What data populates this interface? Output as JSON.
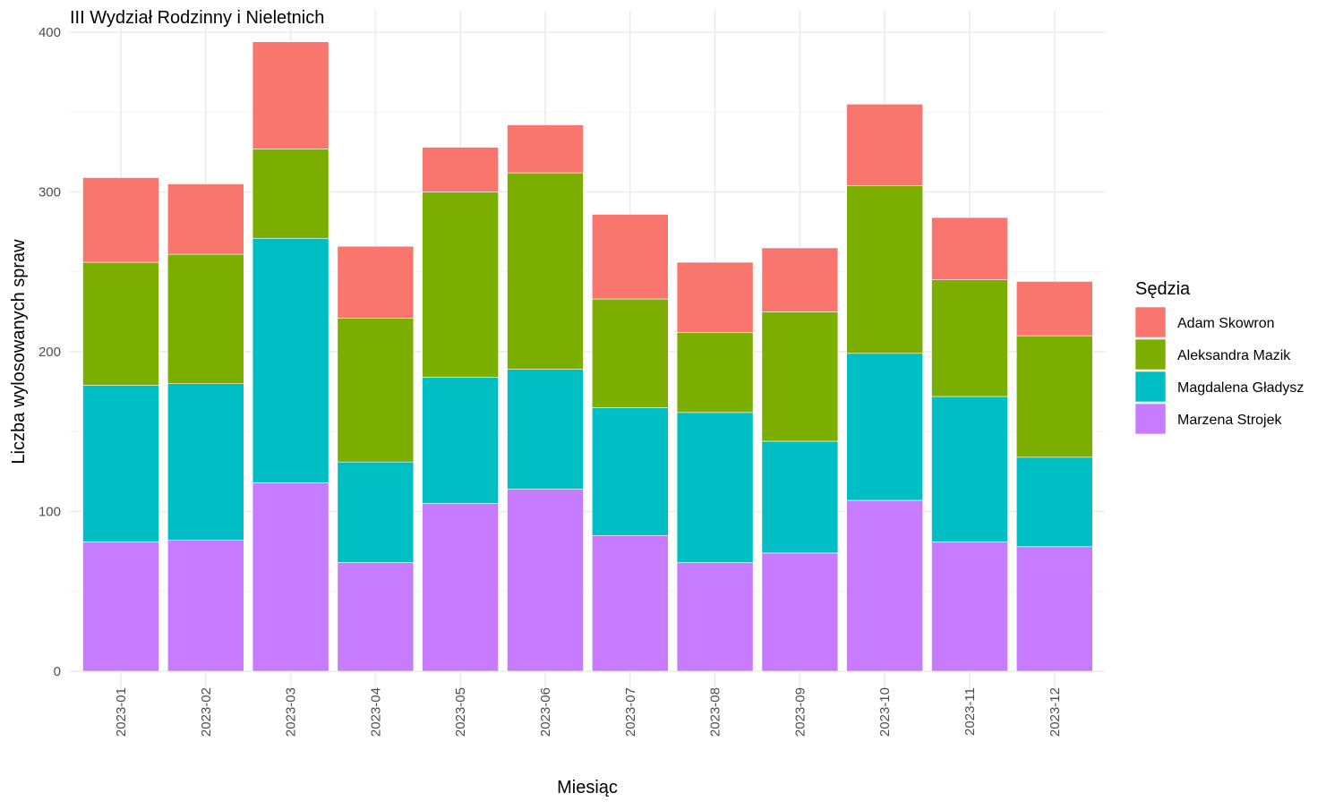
{
  "chart_data": {
    "type": "bar",
    "stacked": true,
    "title": "III Wydział Rodzinny i Nieletnich",
    "xlabel": "Miesiąc",
    "ylabel": "Liczba wylosowanych spraw",
    "ylim": [
      0,
      400
    ],
    "yticks": [
      0,
      100,
      200,
      300,
      400
    ],
    "grid": true,
    "legend_position": "right",
    "legend_title": "Sędzia",
    "categories": [
      "2023-01",
      "2023-02",
      "2023-03",
      "2023-04",
      "2023-05",
      "2023-06",
      "2023-07",
      "2023-08",
      "2023-09",
      "2023-10",
      "2023-11",
      "2023-12"
    ],
    "series": [
      {
        "name": "Marzena Strojek",
        "color": "#C77CFF",
        "values": [
          81,
          82,
          118,
          68,
          105,
          114,
          85,
          68,
          74,
          107,
          81,
          78
        ]
      },
      {
        "name": "Magdalena Gładysz",
        "color": "#00BFC4",
        "values": [
          98,
          98,
          153,
          63,
          79,
          75,
          80,
          94,
          70,
          92,
          91,
          56
        ]
      },
      {
        "name": "Aleksandra Mazik",
        "color": "#7CAE00",
        "values": [
          77,
          81,
          56,
          90,
          116,
          123,
          68,
          50,
          81,
          105,
          73,
          76
        ]
      },
      {
        "name": "Adam Skowron",
        "color": "#F8766D",
        "values": [
          53,
          44,
          67,
          45,
          28,
          30,
          53,
          44,
          40,
          51,
          39,
          34
        ]
      }
    ],
    "legend_order": [
      "Adam Skowron",
      "Aleksandra Mazik",
      "Magdalena Gładysz",
      "Marzena Strojek"
    ]
  }
}
